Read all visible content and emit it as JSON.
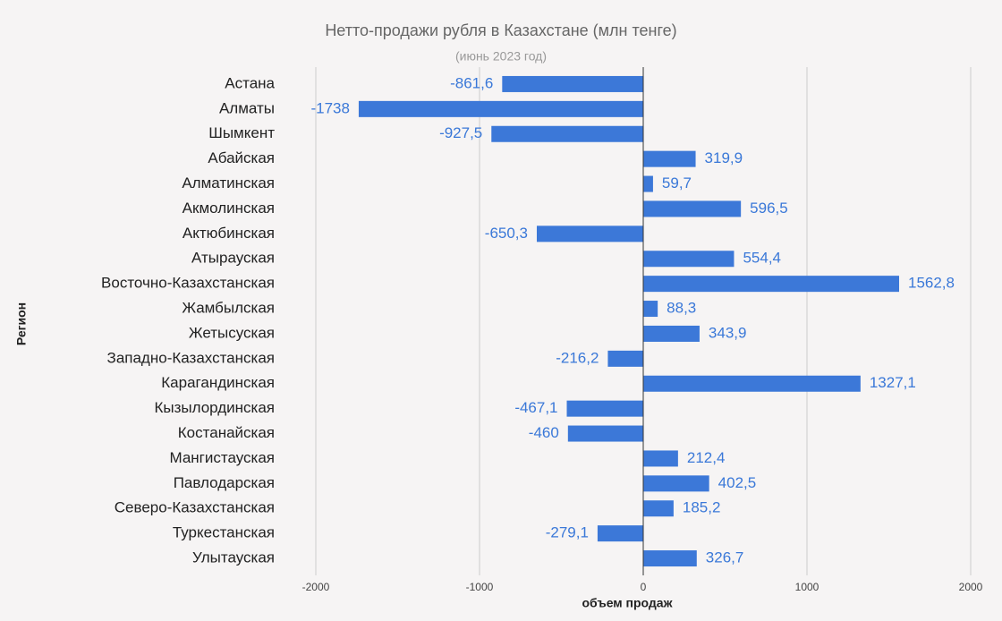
{
  "chart_data": {
    "type": "barh",
    "title": "Нетто-продажи рубля в Казахстане (млн тенге)",
    "subtitle": "(июнь 2023 год)",
    "x_label": "объем продаж",
    "y_label": "Регион",
    "categories": [
      "Астана",
      "Алматы",
      "Шымкент",
      "Абайская",
      "Алматинская",
      "Акмолинская",
      "Актюбинская",
      "Атырауская",
      "Восточно-Казахстанская",
      "Жамбылская",
      "Жетысуская",
      "Западно-Казахстанская",
      "Карагандинская",
      "Кызылординская",
      "Костанайская",
      "Мангистауская",
      "Павлодарская",
      "Северо-Казахстанская",
      "Туркестанская",
      "Улытауская"
    ],
    "values": [
      -861.6,
      -1738,
      -927.5,
      319.9,
      59.7,
      596.5,
      -650.3,
      554.4,
      1562.8,
      88.3,
      343.9,
      -216.2,
      1327.1,
      -467.1,
      -460,
      212.4,
      402.5,
      185.2,
      -279.1,
      326.7
    ],
    "value_labels": [
      "-861,6",
      "-1738",
      "-927,5",
      "319,9",
      "59,7",
      "596,5",
      "-650,3",
      "554,4",
      "1562,8",
      "88,3",
      "343,9",
      "-216,2",
      "1327,1",
      "-467,1",
      "-460",
      "212,4",
      "402,5",
      "185,2",
      "-279,1",
      "326,7"
    ],
    "color": "#3c78d8",
    "xlim": [
      -2000,
      2000
    ],
    "xticks": [
      -2000,
      -1000,
      0,
      1000,
      2000
    ],
    "grid": true
  }
}
